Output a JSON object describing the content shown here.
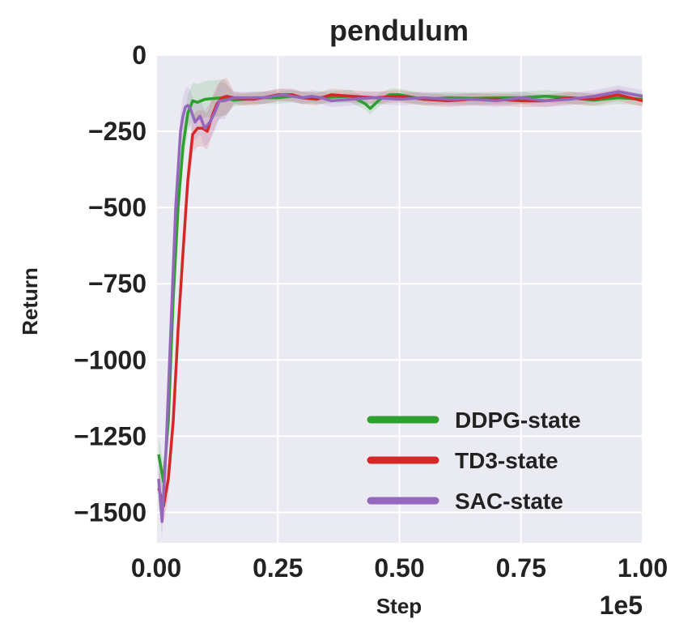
{
  "chart_data": {
    "type": "line",
    "title": "pendulum",
    "xlabel": "Step",
    "ylabel": "Return",
    "x_offset_label": "1e5",
    "xlim": [
      0,
      1.0
    ],
    "ylim": [
      -1600,
      0
    ],
    "xticks": [
      0.0,
      0.25,
      0.5,
      0.75,
      1.0
    ],
    "xtick_labels": [
      "0.00",
      "0.25",
      "0.50",
      "0.75",
      "1.00"
    ],
    "yticks": [
      0,
      -250,
      -500,
      -750,
      -1000,
      -1250,
      -1500
    ],
    "ytick_labels": [
      "0",
      "−250",
      "−500",
      "−750",
      "−1000",
      "−1250",
      "−1500"
    ],
    "grid": true,
    "background_color": "#eaeaf2",
    "legend_position": "lower right",
    "series": [
      {
        "name": "DDPG-state",
        "color": "#2ca02c",
        "x": [
          0.005,
          0.015,
          0.025,
          0.035,
          0.045,
          0.055,
          0.065,
          0.075,
          0.085,
          0.1,
          0.12,
          0.14,
          0.16,
          0.18,
          0.2,
          0.22,
          0.25,
          0.28,
          0.3,
          0.33,
          0.36,
          0.4,
          0.43,
          0.44,
          0.46,
          0.48,
          0.5,
          0.55,
          0.6,
          0.65,
          0.7,
          0.75,
          0.8,
          0.85,
          0.9,
          0.95,
          1.0
        ],
        "y": [
          -1310,
          -1400,
          -1200,
          -800,
          -500,
          -300,
          -190,
          -150,
          -155,
          -145,
          -142,
          -140,
          -148,
          -145,
          -140,
          -140,
          -140,
          -135,
          -140,
          -140,
          -138,
          -135,
          -160,
          -175,
          -145,
          -130,
          -130,
          -145,
          -140,
          -142,
          -140,
          -140,
          -135,
          -140,
          -148,
          -140,
          -145
        ]
      },
      {
        "name": "TD3-state",
        "color": "#d62728",
        "x": [
          0.005,
          0.015,
          0.025,
          0.035,
          0.045,
          0.055,
          0.065,
          0.075,
          0.085,
          0.095,
          0.105,
          0.115,
          0.125,
          0.135,
          0.145,
          0.16,
          0.18,
          0.2,
          0.22,
          0.25,
          0.28,
          0.3,
          0.33,
          0.36,
          0.4,
          0.45,
          0.5,
          0.55,
          0.6,
          0.65,
          0.7,
          0.75,
          0.8,
          0.85,
          0.9,
          0.95,
          1.0
        ],
        "y": [
          -1420,
          -1480,
          -1390,
          -1200,
          -900,
          -650,
          -410,
          -260,
          -240,
          -240,
          -250,
          -200,
          -160,
          -140,
          -135,
          -140,
          -145,
          -145,
          -140,
          -130,
          -130,
          -140,
          -145,
          -130,
          -135,
          -140,
          -135,
          -145,
          -150,
          -145,
          -145,
          -150,
          -150,
          -140,
          -145,
          -130,
          -150
        ]
      },
      {
        "name": "SAC-state",
        "color": "#9467bd",
        "x": [
          0.005,
          0.012,
          0.02,
          0.03,
          0.04,
          0.05,
          0.055,
          0.06,
          0.065,
          0.07,
          0.08,
          0.09,
          0.1,
          0.11,
          0.12,
          0.13,
          0.14,
          0.16,
          0.18,
          0.2,
          0.22,
          0.24,
          0.26,
          0.28,
          0.3,
          0.32,
          0.34,
          0.36,
          0.4,
          0.45,
          0.5,
          0.55,
          0.6,
          0.65,
          0.7,
          0.75,
          0.8,
          0.85,
          0.9,
          0.95,
          1.0
        ],
        "y": [
          -1390,
          -1530,
          -1300,
          -900,
          -500,
          -250,
          -200,
          -170,
          -165,
          -175,
          -220,
          -200,
          -240,
          -220,
          -190,
          -150,
          -150,
          -140,
          -140,
          -140,
          -140,
          -135,
          -130,
          -135,
          -140,
          -135,
          -140,
          -150,
          -145,
          -140,
          -145,
          -140,
          -145,
          -145,
          -150,
          -140,
          -150,
          -145,
          -135,
          -120,
          -135
        ]
      }
    ]
  }
}
